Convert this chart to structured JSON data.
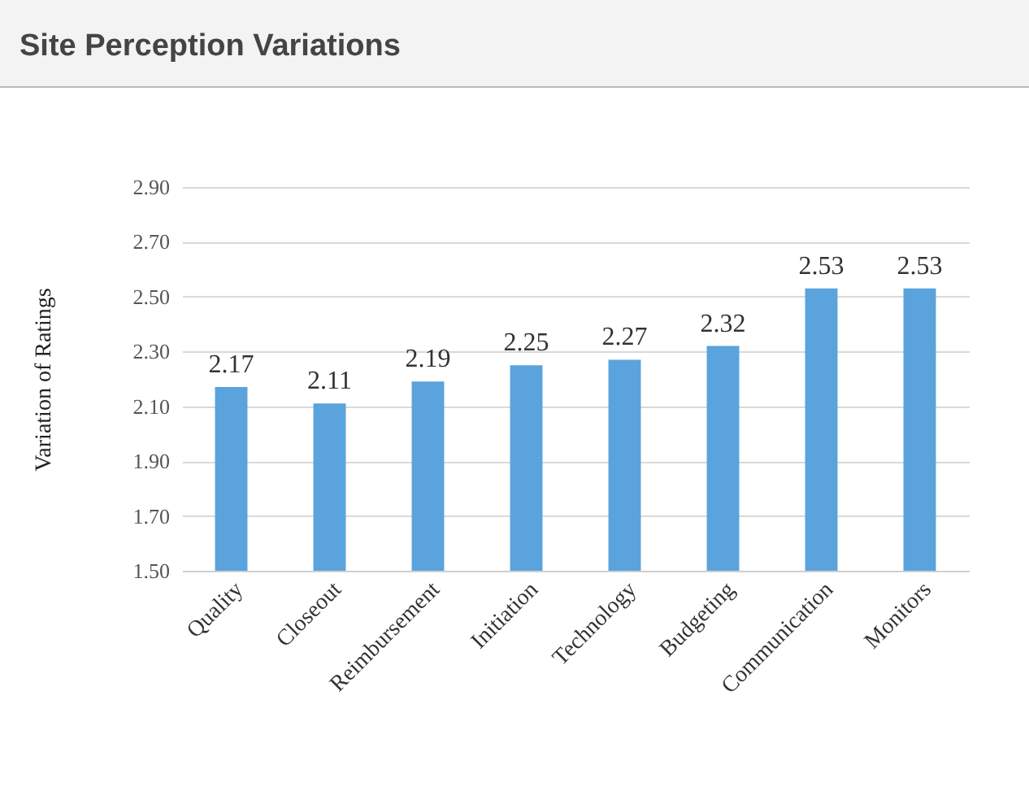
{
  "chart_data": {
    "type": "bar",
    "title": "Site Perception Variations",
    "ylabel": "Variation of Ratings",
    "categories": [
      "Quality",
      "Closeout",
      "Reimbursement",
      "Initiation",
      "Technology",
      "Budgeting",
      "Communication",
      "Monitors"
    ],
    "values": [
      2.17,
      2.11,
      2.19,
      2.25,
      2.27,
      2.32,
      2.53,
      2.53
    ],
    "color": "#5ba3dc",
    "ylim": [
      1.5,
      2.9
    ],
    "yticks": [
      {
        "value": 1.5,
        "label": "1.50"
      },
      {
        "value": 1.7,
        "label": "1.70"
      },
      {
        "value": 1.9,
        "label": "1.90"
      },
      {
        "value": 2.1,
        "label": "2.10"
      },
      {
        "value": 2.3,
        "label": "2.30"
      },
      {
        "value": 2.5,
        "label": "2.50"
      },
      {
        "value": 2.7,
        "label": "2.70"
      },
      {
        "value": 2.9,
        "label": "2.90"
      }
    ],
    "grid": true,
    "data_labels": true
  }
}
